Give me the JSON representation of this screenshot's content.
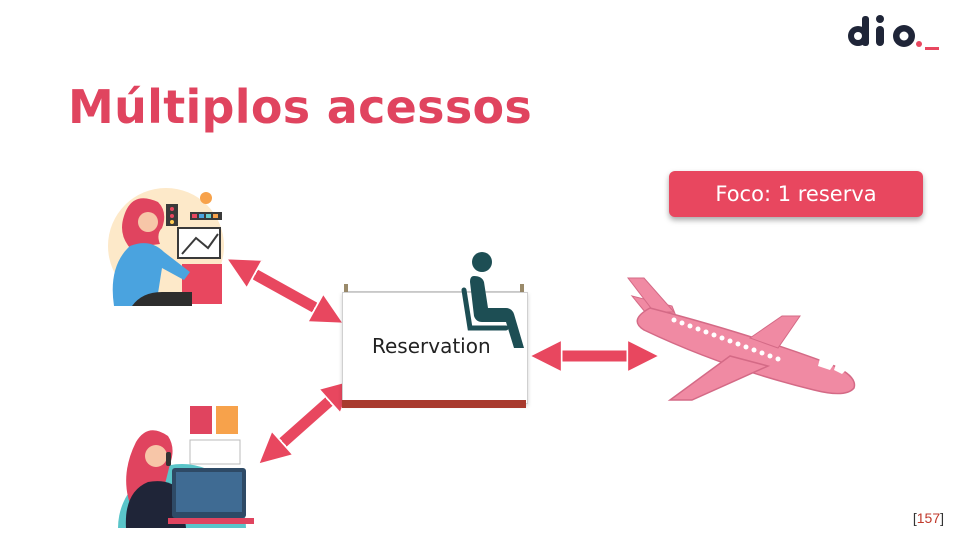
{
  "slide": {
    "title": "Múltiplos acessos",
    "focus_label": "Foco: 1 reserva",
    "reservation_label": "Reservation",
    "page_number": "157",
    "page_bracket_open": "[",
    "page_bracket_close": "]"
  },
  "logo": {
    "text": "dio._",
    "colors": {
      "dark": "#1f2538",
      "accent": "#e8475f"
    }
  },
  "colors": {
    "accent": "#e0445f",
    "arrow": "#e8475f",
    "arrow_outline": "#ffffff",
    "plane": "#f08aa3",
    "seat_icon": "#1d4e54"
  },
  "icons": [
    "woman-at-desk-icon",
    "woman-on-phone-icon",
    "seated-person-icon",
    "airplane-icon"
  ]
}
